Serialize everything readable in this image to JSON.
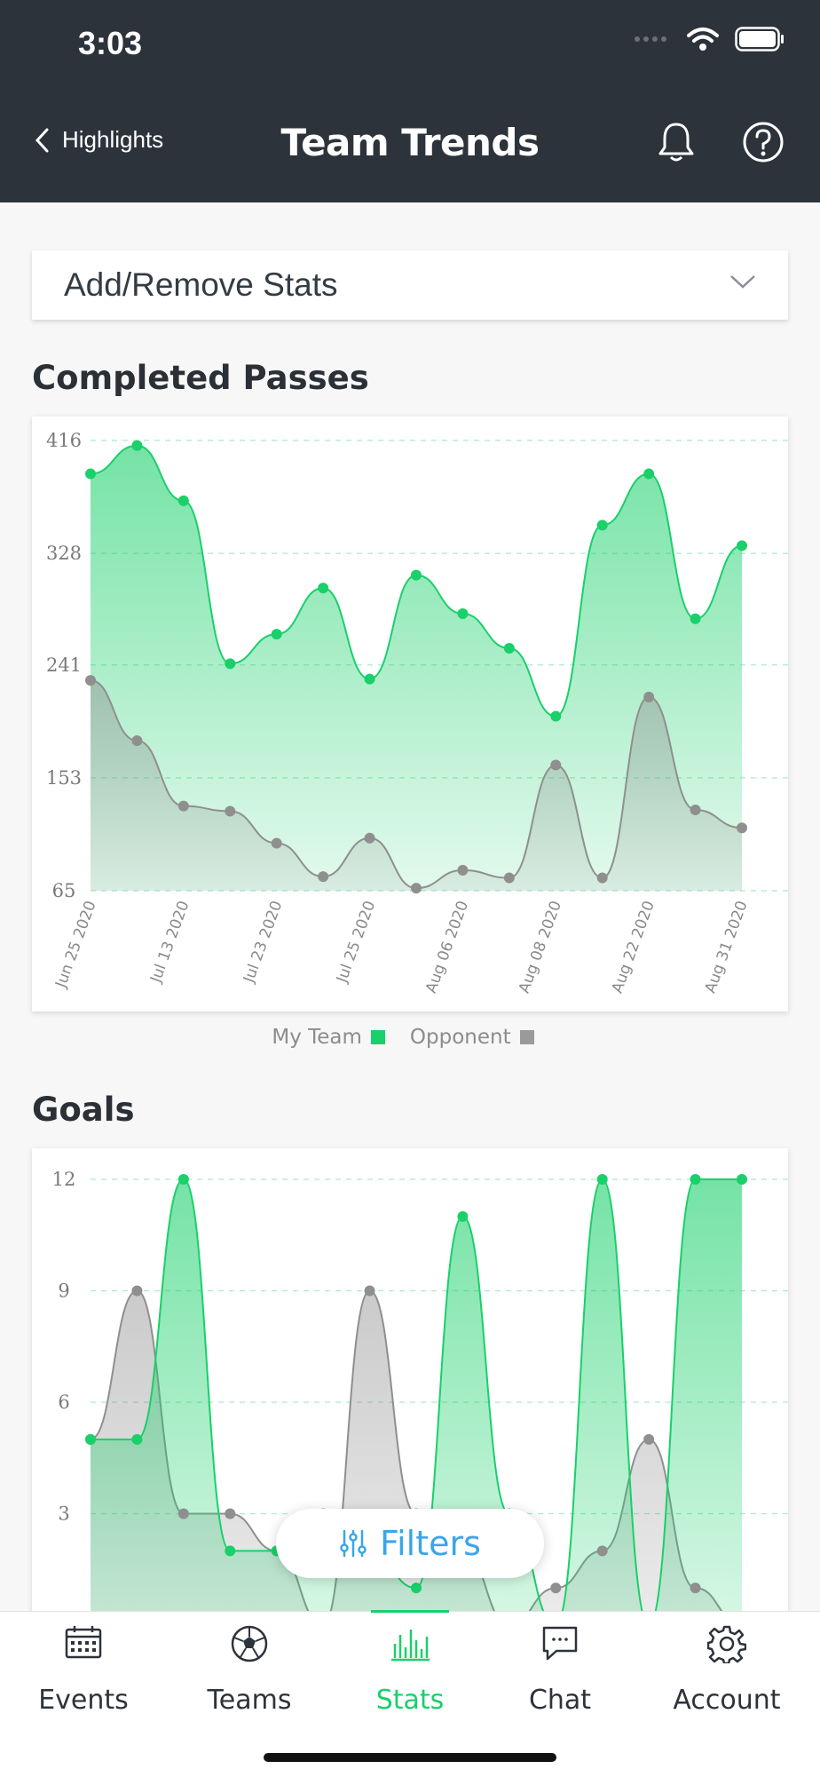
{
  "status_bar": {
    "time": "3:03"
  },
  "nav": {
    "back_label": "Highlights",
    "title": "Team Trends"
  },
  "dropdown": {
    "label": "Add/Remove Stats"
  },
  "sections": {
    "passes_title": "Completed Passes",
    "goals_title": "Goals"
  },
  "legend": {
    "my_team": "My Team",
    "opponent": "Opponent"
  },
  "colors": {
    "my_team": "#19d06a",
    "opponent": "#9a9a9a",
    "header": "#2d333b",
    "accent_blue": "#3aa6e8"
  },
  "filters": {
    "label": "Filters"
  },
  "tabs": [
    {
      "label": "Events",
      "icon": "calendar-icon"
    },
    {
      "label": "Teams",
      "icon": "soccer-ball-icon"
    },
    {
      "label": "Stats",
      "icon": "bar-chart-icon"
    },
    {
      "label": "Chat",
      "icon": "chat-bubble-icon"
    },
    {
      "label": "Account",
      "icon": "gear-icon"
    }
  ],
  "chart_data": [
    {
      "type": "area",
      "title": "Completed Passes",
      "y_ticks": [
        "416",
        "328",
        "241",
        "153",
        "65"
      ],
      "ylim": [
        65,
        416
      ],
      "x_tick_labels": [
        "Jun 25 2020",
        "Jul 13 2020",
        "Jul 23 2020",
        "Jul 25 2020",
        "Aug 06 2020",
        "Aug 08 2020",
        "Aug 22 2020",
        "Aug 31 2020"
      ],
      "series": [
        {
          "name": "My Team",
          "color": "#19d06a",
          "values": [
            390,
            412,
            369,
            242,
            265,
            301,
            230,
            311,
            281,
            254,
            201,
            350,
            390,
            277,
            334
          ]
        },
        {
          "name": "Opponent",
          "color": "#9a9a9a",
          "values": [
            229,
            182,
            131,
            127,
            102,
            76,
            106,
            67,
            81,
            75,
            163,
            75,
            216,
            128,
            114
          ]
        }
      ],
      "grid": true,
      "legend_position": "bottom-center"
    },
    {
      "type": "area",
      "title": "Goals",
      "y_ticks": [
        "12",
        "9",
        "6",
        "3"
      ],
      "ylim": [
        0,
        12
      ],
      "series": [
        {
          "name": "My Team",
          "color": "#19d06a",
          "values": [
            5,
            5,
            12,
            2,
            2,
            3,
            2,
            1,
            11,
            3,
            0,
            12,
            0,
            12,
            12
          ]
        },
        {
          "name": "Opponent",
          "color": "#9a9a9a",
          "values": [
            5,
            9,
            3,
            3,
            2,
            0,
            9,
            3,
            2,
            0,
            1,
            2,
            5,
            1,
            0
          ]
        }
      ],
      "grid": true
    }
  ]
}
